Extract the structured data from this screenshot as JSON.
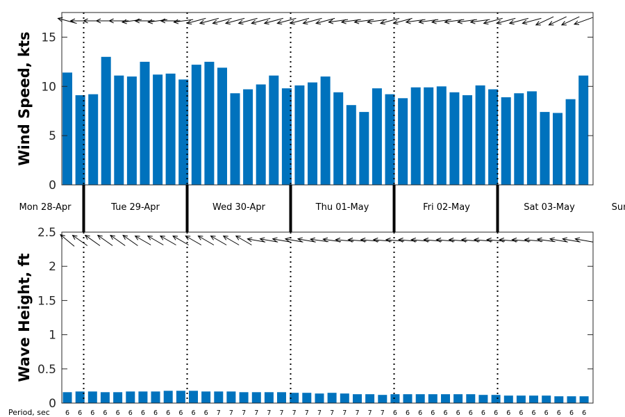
{
  "colors": {
    "bar": "#0072BD",
    "axis": "#262626",
    "arrow": "#000000",
    "day_line": "#000000"
  },
  "icons": {
    "direction_marker": "arrow-icon"
  },
  "chart_data": [
    {
      "type": "bar",
      "panel": "wind",
      "ylabel": "Wind Speed, kts",
      "ylim": [
        0,
        17.5
      ],
      "yticks": [
        "0",
        "5",
        "10",
        "15"
      ],
      "values": [
        11.4,
        9.1,
        9.2,
        13.0,
        11.1,
        11.0,
        12.5,
        11.2,
        11.3,
        10.7,
        12.2,
        12.5,
        11.9,
        9.3,
        9.7,
        10.2,
        11.1,
        9.8,
        10.1,
        10.4,
        11.0,
        9.4,
        8.1,
        7.4,
        9.8,
        9.2,
        8.8,
        9.9,
        9.9,
        10.0,
        9.4,
        9.1,
        10.1,
        9.7,
        8.9,
        9.3,
        9.5,
        7.4,
        7.3,
        8.7,
        11.1
      ],
      "direction_deg": [
        15,
        0,
        0,
        0,
        0,
        -8,
        0,
        -8,
        0,
        -8,
        -15,
        -15,
        -15,
        -15,
        -15,
        -15,
        -15,
        -15,
        -15,
        -15,
        -15,
        -8,
        -8,
        -8,
        -8,
        -15,
        -15,
        -8,
        -8,
        -8,
        -8,
        -8,
        -8,
        -15,
        -15,
        -15,
        -15,
        -25,
        -25,
        -25,
        -20
      ],
      "grid": false
    },
    {
      "type": "bar",
      "panel": "wave",
      "ylabel": "Wave Height, ft",
      "ylim": [
        0,
        2.5
      ],
      "yticks": [
        "0",
        "0.5",
        "1",
        "1.5",
        "2",
        "2.5"
      ],
      "values": [
        0.16,
        0.17,
        0.17,
        0.16,
        0.16,
        0.17,
        0.17,
        0.17,
        0.18,
        0.18,
        0.18,
        0.17,
        0.17,
        0.17,
        0.16,
        0.16,
        0.16,
        0.16,
        0.15,
        0.15,
        0.14,
        0.15,
        0.14,
        0.13,
        0.13,
        0.12,
        0.13,
        0.13,
        0.13,
        0.13,
        0.13,
        0.13,
        0.13,
        0.12,
        0.12,
        0.11,
        0.11,
        0.11,
        0.11,
        0.1,
        0.1,
        0.1
      ],
      "direction_deg": [
        40,
        35,
        35,
        35,
        35,
        35,
        30,
        30,
        30,
        30,
        30,
        30,
        30,
        30,
        30,
        10,
        10,
        10,
        10,
        10,
        8,
        8,
        5,
        5,
        5,
        5,
        5,
        5,
        5,
        5,
        5,
        5,
        5,
        5,
        5,
        5,
        5,
        5,
        8,
        10,
        10,
        10
      ],
      "period_title": "Period, sec",
      "periods": [
        "6",
        "6",
        "6",
        "6",
        "6",
        "6",
        "6",
        "6",
        "6",
        "6",
        "6",
        "6",
        "7",
        "7",
        "7",
        "7",
        "7",
        "7",
        "7",
        "7",
        "7",
        "7",
        "7",
        "7",
        "7",
        "7",
        "6",
        "6",
        "6",
        "6",
        "6",
        "6",
        "6",
        "6",
        "6",
        "6",
        "6",
        "6",
        "6",
        "6",
        "6",
        "6"
      ],
      "grid": false
    }
  ],
  "days": [
    "Mon 28-Apr",
    "Tue 29-Apr",
    "Wed 30-Apr",
    "Thu 01-May",
    "Fri 02-May",
    "Sat 03-May",
    "Sun"
  ]
}
